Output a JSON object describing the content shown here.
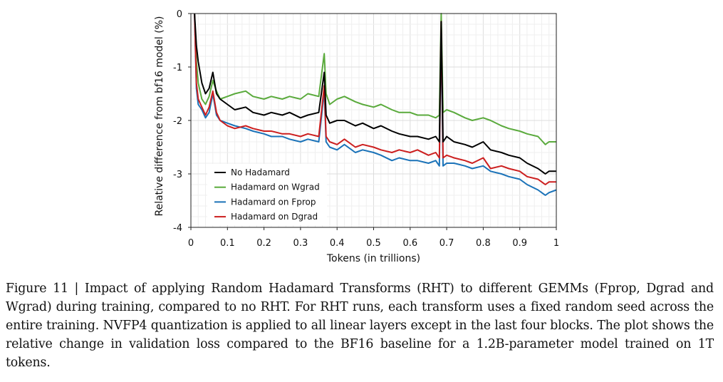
{
  "chart_data": {
    "type": "line",
    "title": "",
    "xlabel": "Tokens (in trillions)",
    "ylabel": "Relative difference from bf16 model (%)",
    "xlim": [
      0,
      1
    ],
    "ylim": [
      -4,
      0
    ],
    "x_ticks": [
      "0",
      "0.1",
      "0.2",
      "0.3",
      "0.4",
      "0.5",
      "0.6",
      "0.7",
      "0.8",
      "0.9",
      "1"
    ],
    "y_ticks": [
      "0",
      "-1",
      "-2",
      "-3",
      "-4"
    ],
    "grid": true,
    "legend_position": "lower-left",
    "series": [
      {
        "name": "No Hadamard",
        "color": "#000000",
        "x": [
          0.01,
          0.015,
          0.02,
          0.03,
          0.04,
          0.05,
          0.06,
          0.07,
          0.08,
          0.1,
          0.12,
          0.15,
          0.17,
          0.2,
          0.22,
          0.25,
          0.27,
          0.3,
          0.32,
          0.35,
          0.365,
          0.37,
          0.38,
          0.4,
          0.42,
          0.45,
          0.47,
          0.5,
          0.52,
          0.55,
          0.57,
          0.6,
          0.62,
          0.65,
          0.67,
          0.68,
          0.685,
          0.69,
          0.7,
          0.72,
          0.75,
          0.77,
          0.8,
          0.82,
          0.85,
          0.87,
          0.9,
          0.92,
          0.95,
          0.97,
          0.98,
          1.0
        ],
        "y": [
          0.0,
          -0.6,
          -0.9,
          -1.3,
          -1.5,
          -1.4,
          -1.1,
          -1.5,
          -1.6,
          -1.7,
          -1.8,
          -1.75,
          -1.85,
          -1.9,
          -1.85,
          -1.9,
          -1.85,
          -1.95,
          -1.9,
          -1.85,
          -1.1,
          -1.9,
          -2.05,
          -2.0,
          -2.0,
          -2.1,
          -2.05,
          -2.15,
          -2.1,
          -2.2,
          -2.25,
          -2.3,
          -2.3,
          -2.35,
          -2.3,
          -2.4,
          -0.15,
          -2.4,
          -2.3,
          -2.4,
          -2.45,
          -2.5,
          -2.4,
          -2.55,
          -2.6,
          -2.65,
          -2.7,
          -2.8,
          -2.9,
          -3.0,
          -2.95,
          -2.95
        ]
      },
      {
        "name": "Hadamard on Wgrad",
        "color": "#5aaa3c",
        "x": [
          0.01,
          0.015,
          0.02,
          0.03,
          0.04,
          0.05,
          0.06,
          0.07,
          0.08,
          0.1,
          0.12,
          0.15,
          0.17,
          0.2,
          0.22,
          0.25,
          0.27,
          0.3,
          0.32,
          0.35,
          0.365,
          0.37,
          0.38,
          0.4,
          0.42,
          0.45,
          0.47,
          0.5,
          0.52,
          0.55,
          0.57,
          0.6,
          0.62,
          0.65,
          0.67,
          0.68,
          0.685,
          0.69,
          0.7,
          0.72,
          0.75,
          0.77,
          0.8,
          0.82,
          0.85,
          0.87,
          0.9,
          0.92,
          0.95,
          0.97,
          0.98,
          1.0
        ],
        "y": [
          0.0,
          -0.9,
          -1.3,
          -1.6,
          -1.7,
          -1.55,
          -1.25,
          -1.45,
          -1.6,
          -1.55,
          -1.5,
          -1.45,
          -1.55,
          -1.6,
          -1.55,
          -1.6,
          -1.55,
          -1.6,
          -1.5,
          -1.55,
          -0.75,
          -1.5,
          -1.7,
          -1.6,
          -1.55,
          -1.65,
          -1.7,
          -1.75,
          -1.7,
          -1.8,
          -1.85,
          -1.85,
          -1.9,
          -1.9,
          -1.95,
          -1.9,
          0.0,
          -1.85,
          -1.8,
          -1.85,
          -1.95,
          -2.0,
          -1.95,
          -2.0,
          -2.1,
          -2.15,
          -2.2,
          -2.25,
          -2.3,
          -2.45,
          -2.4,
          -2.4
        ]
      },
      {
        "name": "Hadamard on Fprop",
        "color": "#1a72b8",
        "x": [
          0.01,
          0.015,
          0.02,
          0.03,
          0.04,
          0.05,
          0.06,
          0.07,
          0.08,
          0.1,
          0.12,
          0.15,
          0.17,
          0.2,
          0.22,
          0.25,
          0.27,
          0.3,
          0.32,
          0.35,
          0.365,
          0.37,
          0.38,
          0.4,
          0.42,
          0.45,
          0.47,
          0.5,
          0.52,
          0.55,
          0.57,
          0.6,
          0.62,
          0.65,
          0.67,
          0.68,
          0.685,
          0.69,
          0.7,
          0.72,
          0.75,
          0.77,
          0.8,
          0.82,
          0.85,
          0.87,
          0.9,
          0.92,
          0.95,
          0.97,
          0.98,
          1.0
        ],
        "y": [
          0.0,
          -1.4,
          -1.7,
          -1.8,
          -1.95,
          -1.85,
          -1.5,
          -1.9,
          -2.0,
          -2.05,
          -2.1,
          -2.15,
          -2.2,
          -2.25,
          -2.3,
          -2.3,
          -2.35,
          -2.4,
          -2.35,
          -2.4,
          -1.45,
          -2.4,
          -2.5,
          -2.55,
          -2.45,
          -2.6,
          -2.55,
          -2.6,
          -2.65,
          -2.75,
          -2.7,
          -2.75,
          -2.75,
          -2.8,
          -2.75,
          -2.85,
          -0.3,
          -2.85,
          -2.8,
          -2.8,
          -2.85,
          -2.9,
          -2.85,
          -2.95,
          -3.0,
          -3.05,
          -3.1,
          -3.2,
          -3.3,
          -3.4,
          -3.35,
          -3.3
        ]
      },
      {
        "name": "Hadamard on Dgrad",
        "color": "#cc1f1f",
        "x": [
          0.01,
          0.015,
          0.02,
          0.03,
          0.04,
          0.05,
          0.06,
          0.07,
          0.08,
          0.1,
          0.12,
          0.15,
          0.17,
          0.2,
          0.22,
          0.25,
          0.27,
          0.3,
          0.32,
          0.35,
          0.365,
          0.37,
          0.38,
          0.4,
          0.42,
          0.45,
          0.47,
          0.5,
          0.52,
          0.55,
          0.57,
          0.6,
          0.62,
          0.65,
          0.67,
          0.68,
          0.685,
          0.69,
          0.7,
          0.72,
          0.75,
          0.77,
          0.8,
          0.82,
          0.85,
          0.87,
          0.9,
          0.92,
          0.95,
          0.97,
          0.98,
          1.0
        ],
        "y": [
          0.0,
          -1.3,
          -1.6,
          -1.75,
          -1.9,
          -1.75,
          -1.45,
          -1.85,
          -2.0,
          -2.1,
          -2.15,
          -2.1,
          -2.15,
          -2.2,
          -2.2,
          -2.25,
          -2.25,
          -2.3,
          -2.25,
          -2.3,
          -1.35,
          -2.3,
          -2.4,
          -2.45,
          -2.35,
          -2.5,
          -2.45,
          -2.5,
          -2.55,
          -2.6,
          -2.55,
          -2.6,
          -2.55,
          -2.65,
          -2.6,
          -2.7,
          -0.15,
          -2.7,
          -2.65,
          -2.7,
          -2.75,
          -2.8,
          -2.7,
          -2.9,
          -2.85,
          -2.9,
          -2.95,
          -3.05,
          -3.1,
          -3.2,
          -3.15,
          -3.15
        ]
      }
    ]
  },
  "caption": "Figure 11 | Impact of applying Random Hadamard Transforms (RHT) to different GEMMs (Fprop, Dgrad and Wgrad) during training, compared to no RHT. For RHT runs, each transform uses a fixed random seed across the entire training.  NVFP4 quantization is applied to all linear layers except in the last four blocks. The plot shows the relative change in validation loss compared to the BF16 baseline for a 1.2B-parameter model trained on 1T tokens."
}
